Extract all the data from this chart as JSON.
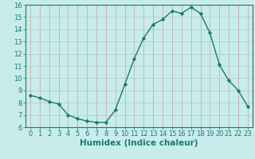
{
  "xlabel": "Humidex (Indice chaleur)",
  "x": [
    0,
    1,
    2,
    3,
    4,
    5,
    6,
    7,
    8,
    9,
    10,
    11,
    12,
    13,
    14,
    15,
    16,
    17,
    18,
    19,
    20,
    21,
    22,
    23
  ],
  "y": [
    8.6,
    8.4,
    8.1,
    7.9,
    7.0,
    6.7,
    6.5,
    6.4,
    6.4,
    7.4,
    9.5,
    11.6,
    13.3,
    14.4,
    14.8,
    15.5,
    15.3,
    15.8,
    15.3,
    13.7,
    11.1,
    9.8,
    9.0,
    7.7
  ],
  "line_color": "#1a7a6e",
  "marker": "D",
  "marker_size": 2.2,
  "background_color": "#c8ecec",
  "grid_color": "#b8d8d8",
  "ylim": [
    6,
    16
  ],
  "yticks": [
    6,
    7,
    8,
    9,
    10,
    11,
    12,
    13,
    14,
    15,
    16
  ],
  "xlim": [
    -0.5,
    23.5
  ],
  "xticks": [
    0,
    1,
    2,
    3,
    4,
    5,
    6,
    7,
    8,
    9,
    10,
    11,
    12,
    13,
    14,
    15,
    16,
    17,
    18,
    19,
    20,
    21,
    22,
    23
  ],
  "tick_fontsize": 6,
  "label_fontsize": 7.5,
  "line_width": 1.0
}
